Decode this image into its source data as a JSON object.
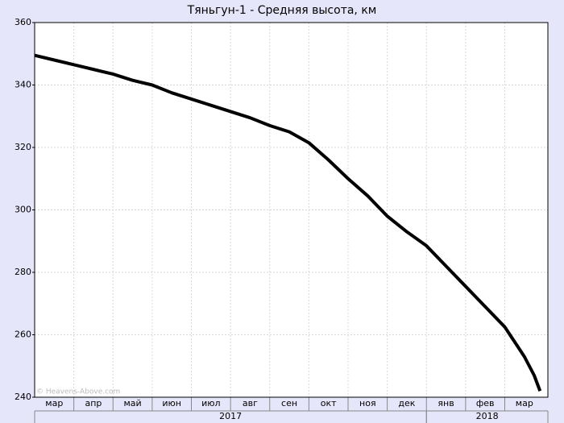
{
  "chart_data": {
    "type": "line",
    "title": "Тяньгун-1 - Средняя высота, км",
    "watermark": "© Heavens-Above.com",
    "x": [
      0,
      0.5,
      1,
      1.5,
      2,
      2.5,
      3,
      3.5,
      4,
      4.5,
      5,
      5.5,
      6,
      6.5,
      7,
      7.5,
      8,
      8.5,
      9,
      9.5,
      10,
      10.5,
      11,
      11.5,
      12,
      12.5,
      12.75,
      12.9
    ],
    "series": [
      {
        "color": "#000000",
        "values": [
          349.5,
          348,
          346.5,
          345,
          343.5,
          341.5,
          340,
          337.5,
          335.5,
          333.5,
          331.5,
          329.5,
          327,
          325,
          321.5,
          316,
          310,
          304.5,
          298,
          293,
          288.5,
          282,
          275.5,
          269,
          262.5,
          253,
          247,
          242
        ]
      }
    ],
    "xlim": [
      0,
      13.1
    ],
    "xticks": [
      {
        "value": 0.5,
        "label": "мар"
      },
      {
        "value": 1.5,
        "label": "апр"
      },
      {
        "value": 2.5,
        "label": "май"
      },
      {
        "value": 3.5,
        "label": "июн"
      },
      {
        "value": 4.5,
        "label": "июл"
      },
      {
        "value": 5.5,
        "label": "авг"
      },
      {
        "value": 6.5,
        "label": "сен"
      },
      {
        "value": 7.5,
        "label": "окт"
      },
      {
        "value": 8.5,
        "label": "ноя"
      },
      {
        "value": 9.5,
        "label": "дек"
      },
      {
        "value": 10.5,
        "label": "янв"
      },
      {
        "value": 11.5,
        "label": "фев"
      },
      {
        "value": 12.5,
        "label": "мар"
      }
    ],
    "x_groups": [
      {
        "label": "2017",
        "range": [
          0,
          10
        ]
      },
      {
        "label": "2018",
        "range": [
          10,
          13.1
        ]
      }
    ],
    "ylim": [
      240,
      360
    ],
    "yticks": [
      240,
      260,
      280,
      300,
      320,
      340,
      360
    ],
    "grid": true
  }
}
